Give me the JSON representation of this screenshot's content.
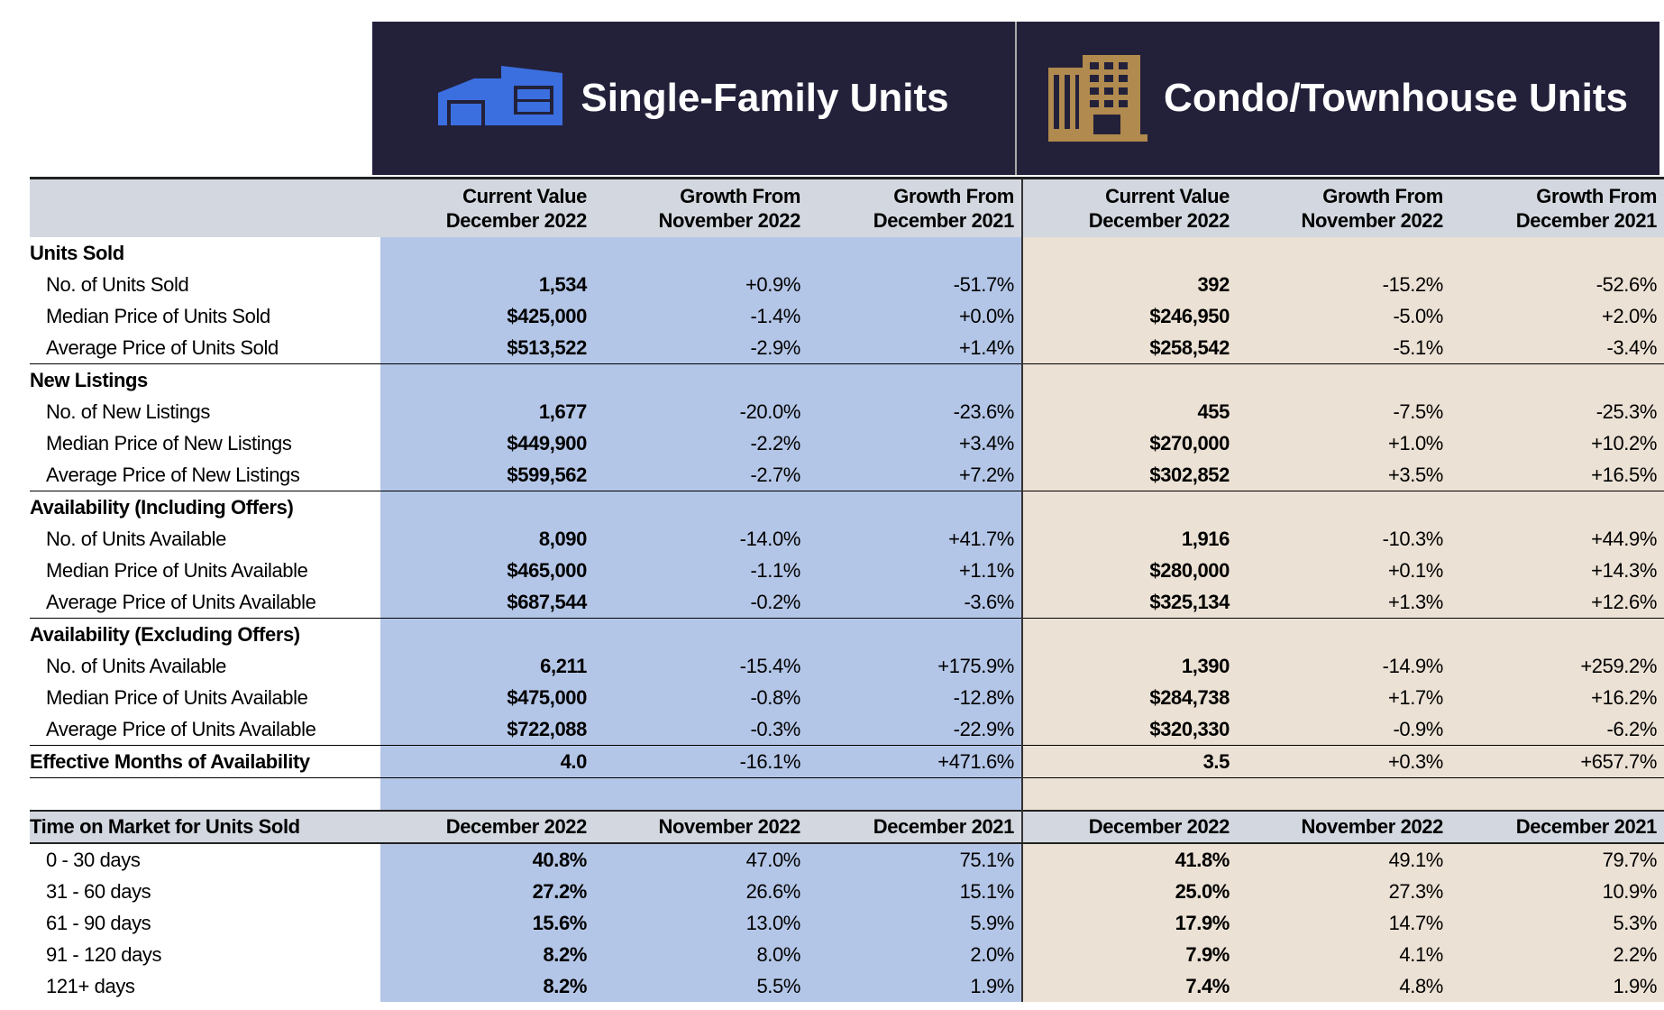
{
  "header": {
    "single_family": "Single-Family Units",
    "condo": "Condo/Townhouse Units"
  },
  "column_headers": [
    [
      "Current Value",
      "December 2022"
    ],
    [
      "Growth From",
      "November 2022"
    ],
    [
      "Growth From",
      "December 2021"
    ],
    [
      "Current Value",
      "December 2022"
    ],
    [
      "Growth From",
      "November 2022"
    ],
    [
      "Growth From",
      "December 2021"
    ]
  ],
  "sections": [
    {
      "title": "Units Sold",
      "rows": [
        {
          "label": "No. of Units Sold",
          "values": [
            "1,534",
            "+0.9%",
            "-51.7%",
            "392",
            "-15.2%",
            "-52.6%"
          ]
        },
        {
          "label": "Median Price of Units Sold",
          "values": [
            "$425,000",
            "-1.4%",
            "+0.0%",
            "$246,950",
            "-5.0%",
            "+2.0%"
          ]
        },
        {
          "label": "Average Price of Units Sold",
          "values": [
            "$513,522",
            "-2.9%",
            "+1.4%",
            "$258,542",
            "-5.1%",
            "-3.4%"
          ]
        }
      ]
    },
    {
      "title": "New Listings",
      "rows": [
        {
          "label": "No. of New Listings",
          "values": [
            "1,677",
            "-20.0%",
            "-23.6%",
            "455",
            "-7.5%",
            "-25.3%"
          ]
        },
        {
          "label": "Median Price of New Listings",
          "values": [
            "$449,900",
            "-2.2%",
            "+3.4%",
            "$270,000",
            "+1.0%",
            "+10.2%"
          ]
        },
        {
          "label": "Average Price of New Listings",
          "values": [
            "$599,562",
            "-2.7%",
            "+7.2%",
            "$302,852",
            "+3.5%",
            "+16.5%"
          ]
        }
      ]
    },
    {
      "title": "Availability (Including Offers)",
      "rows": [
        {
          "label": "No. of Units Available",
          "values": [
            "8,090",
            "-14.0%",
            "+41.7%",
            "1,916",
            "-10.3%",
            "+44.9%"
          ]
        },
        {
          "label": "Median Price of Units Available",
          "values": [
            "$465,000",
            "-1.1%",
            "+1.1%",
            "$280,000",
            "+0.1%",
            "+14.3%"
          ]
        },
        {
          "label": "Average Price of Units Available",
          "values": [
            "$687,544",
            "-0.2%",
            "-3.6%",
            "$325,134",
            "+1.3%",
            "+12.6%"
          ]
        }
      ]
    },
    {
      "title": "Availability (Excluding Offers)",
      "rows": [
        {
          "label": "No. of Units Available",
          "values": [
            "6,211",
            "-15.4%",
            "+175.9%",
            "1,390",
            "-14.9%",
            "+259.2%"
          ]
        },
        {
          "label": "Median Price of Units Available",
          "values": [
            "$475,000",
            "-0.8%",
            "-12.8%",
            "$284,738",
            "+1.7%",
            "+16.2%"
          ]
        },
        {
          "label": "Average Price of Units Available",
          "values": [
            "$722,088",
            "-0.3%",
            "-22.9%",
            "$320,330",
            "-0.9%",
            "-6.2%"
          ]
        }
      ]
    },
    {
      "title": "Effective Months of Availability",
      "values": [
        "4.0",
        "-16.1%",
        "+471.6%",
        "3.5",
        "+0.3%",
        "+657.7%"
      ]
    }
  ],
  "time_on_market": {
    "title": "Time on Market for Units Sold",
    "columns": [
      "December 2022",
      "November 2022",
      "December 2021",
      "December 2022",
      "November 2022",
      "December 2021"
    ],
    "rows": [
      {
        "label": "0 - 30 days",
        "values": [
          "40.8%",
          "47.0%",
          "75.1%",
          "41.8%",
          "49.1%",
          "79.7%"
        ]
      },
      {
        "label": "31 - 60 days",
        "values": [
          "27.2%",
          "26.6%",
          "15.1%",
          "25.0%",
          "27.3%",
          "10.9%"
        ]
      },
      {
        "label": "61 - 90 days",
        "values": [
          "15.6%",
          "13.0%",
          "5.9%",
          "17.9%",
          "14.7%",
          "5.3%"
        ]
      },
      {
        "label": "91 - 120 days",
        "values": [
          "8.2%",
          "8.0%",
          "2.0%",
          "7.9%",
          "4.1%",
          "2.2%"
        ]
      },
      {
        "label": "121+ days",
        "values": [
          "8.2%",
          "5.5%",
          "1.9%",
          "7.4%",
          "4.8%",
          "1.9%"
        ]
      }
    ]
  }
}
